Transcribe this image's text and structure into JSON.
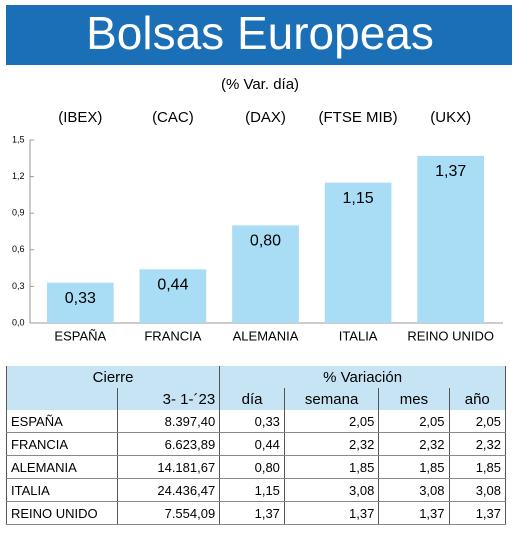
{
  "chart_data": {
    "type": "bar",
    "title": "Bolsas Europeas",
    "subtitle": "(% Var. día)",
    "tickers": [
      "(IBEX)",
      "(CAC)",
      "(DAX)",
      "(FTSE MIB)",
      "(UKX)"
    ],
    "categories": [
      "ESPAÑA",
      "FRANCIA",
      "ALEMANIA",
      "ITALIA",
      "REINO UNIDO"
    ],
    "values": [
      0.33,
      0.44,
      0.8,
      1.15,
      1.37
    ],
    "value_labels": [
      "0,33",
      "0,44",
      "0,80",
      "1,15",
      "1,37"
    ],
    "color": "#a9ddf5",
    "ylim": [
      0,
      1.5
    ],
    "yticks": [
      {
        "value": 0,
        "label": "0,0"
      },
      {
        "value": 0.3,
        "label": "0,3"
      },
      {
        "value": 0.6,
        "label": "0,6"
      },
      {
        "value": 0.9,
        "label": "0,9"
      },
      {
        "value": 1.2,
        "label": "1,2"
      },
      {
        "value": 1.5,
        "label": "1,5"
      }
    ],
    "grid": false
  },
  "table": {
    "header": [
      "Cierre",
      "% Variación"
    ],
    "subheader": [
      "3- 1-´23",
      "día",
      "semana",
      "mes",
      "año"
    ],
    "rows": [
      [
        "ESPAÑA",
        "8.397,40",
        "0,33",
        "2,05",
        "2,05",
        "2,05"
      ],
      [
        "FRANCIA",
        "6.623,89",
        "0,44",
        "2,32",
        "2,32",
        "2,32"
      ],
      [
        "ALEMANIA",
        "14.181,67",
        "0,80",
        "1,85",
        "1,85",
        "1,85"
      ],
      [
        "ITALIA",
        "24.436,47",
        "1,15",
        "3,08",
        "3,08",
        "3,08"
      ],
      [
        "REINO UNIDO",
        "7.554,09",
        "1,37",
        "1,37",
        "1,37",
        "1,37"
      ]
    ]
  }
}
